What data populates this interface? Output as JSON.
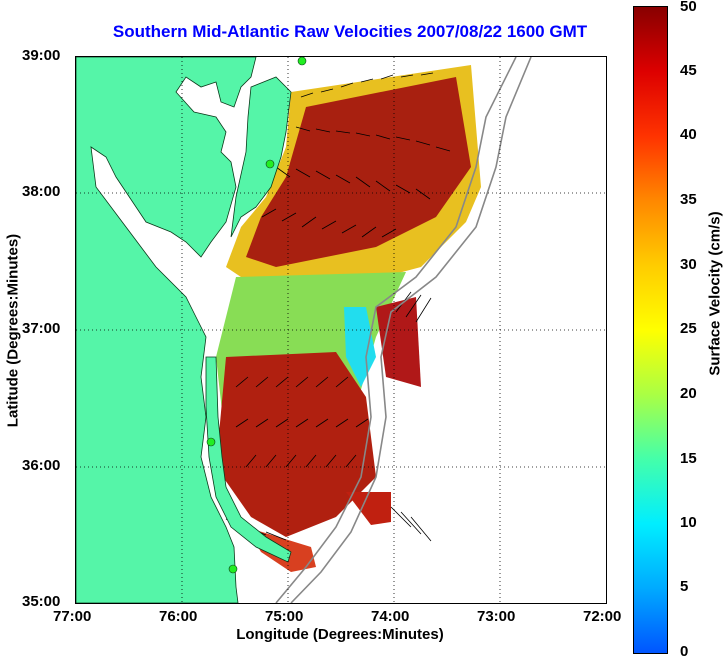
{
  "title": "Southern Mid-Atlantic Raw Velocities 2007/08/22 1600 GMT",
  "x_axis": {
    "label": "Longitude (Degrees:Minutes)",
    "ticks": [
      "77:00",
      "76:00",
      "75:00",
      "74:00",
      "73:00",
      "72:00"
    ]
  },
  "y_axis": {
    "label": "Latitude (Degrees:Minutes)",
    "ticks": [
      "39:00",
      "38:00",
      "37:00",
      "36:00",
      "35:00"
    ]
  },
  "colorbar": {
    "label": "Surface Velocity (cm/s)",
    "ticks": [
      "50",
      "45",
      "40",
      "35",
      "30",
      "25",
      "20",
      "15",
      "10",
      "5",
      "0"
    ],
    "range": [
      0,
      50
    ]
  },
  "colors": {
    "land": "#55f5a8",
    "title": "#0000ff",
    "station": "#22ee22"
  },
  "map": {
    "lon_range": [
      -77,
      -72
    ],
    "lat_range": [
      35,
      39
    ],
    "stations": [
      {
        "lon": -74.87,
        "lat": 38.98
      },
      {
        "lon": -75.18,
        "lat": 38.22
      },
      {
        "lon": -75.72,
        "lat": 36.17
      },
      {
        "lon": -75.47,
        "lat": 35.23
      }
    ]
  }
}
